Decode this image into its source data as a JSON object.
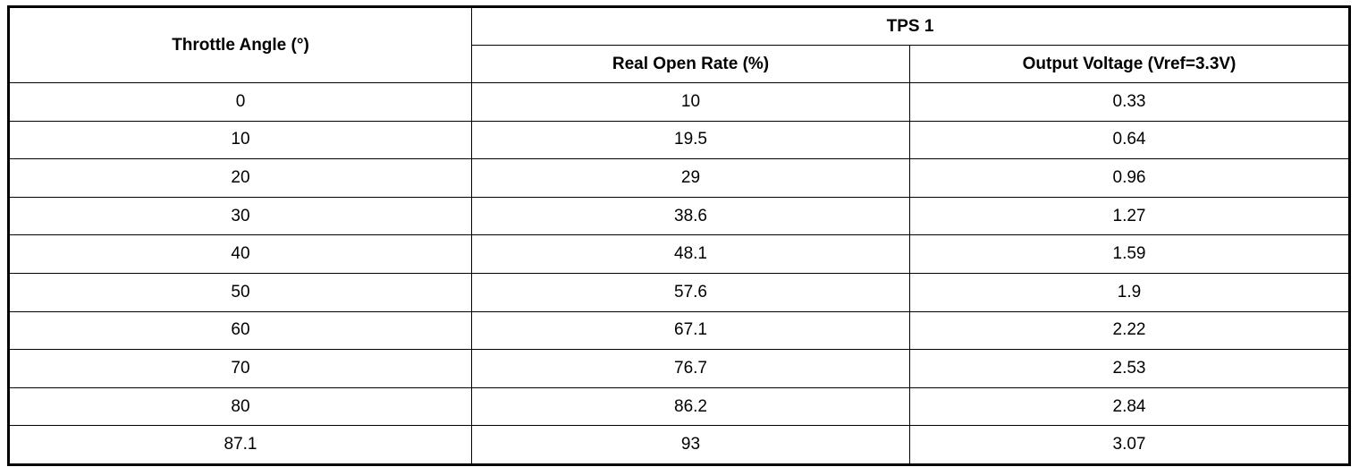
{
  "table": {
    "header": {
      "angle": "Throttle Angle (°)",
      "group": "TPS 1",
      "columns": [
        "Real Open Rate (%)",
        "Output Voltage (Vref=3.3V)"
      ]
    },
    "rows": [
      [
        0,
        10,
        0.33
      ],
      [
        10,
        19.5,
        0.64
      ],
      [
        20,
        29,
        0.96
      ],
      [
        30,
        38.6,
        1.27
      ],
      [
        40,
        48.1,
        1.59
      ],
      [
        50,
        57.6,
        1.9
      ],
      [
        60,
        67.1,
        2.22
      ],
      [
        70,
        76.7,
        2.53
      ],
      [
        80,
        86.2,
        2.84
      ],
      [
        87.1,
        93,
        3.07
      ]
    ]
  }
}
